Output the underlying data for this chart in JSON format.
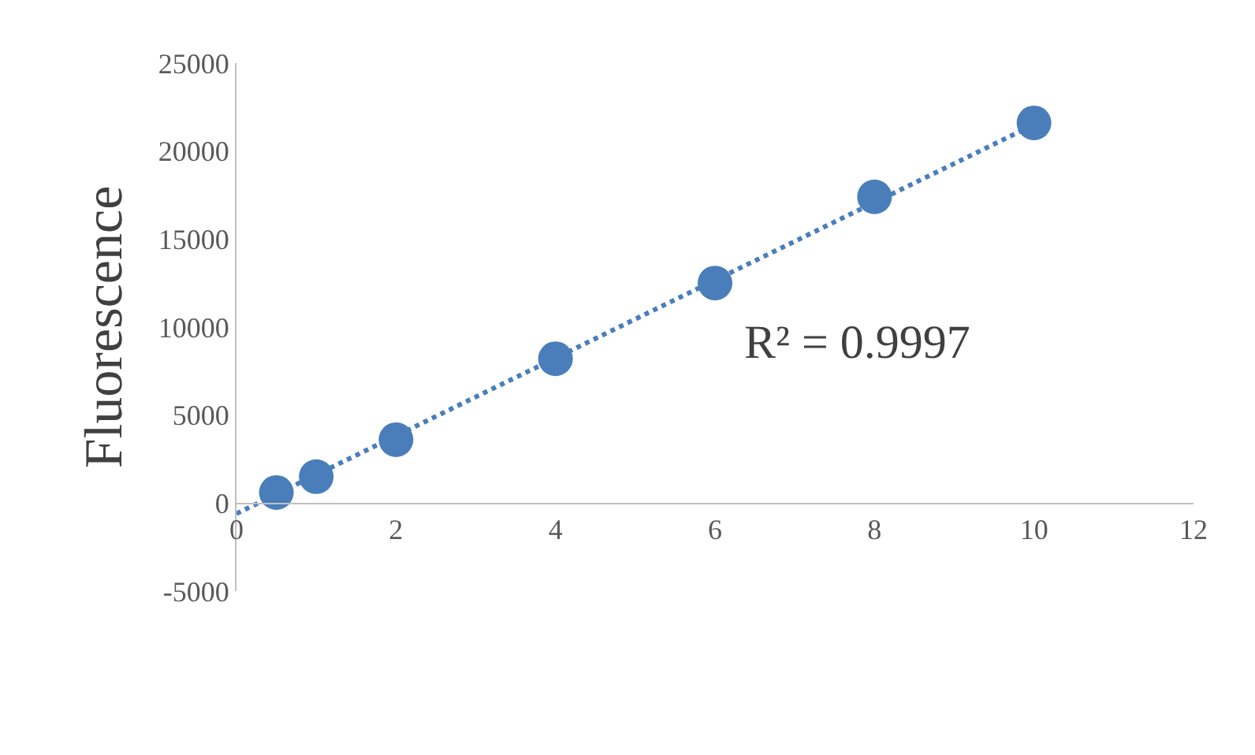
{
  "chart_data": {
    "type": "scatter",
    "ylabel": "Fluorescence",
    "marker": "circle",
    "grid": false,
    "xlim": [
      0,
      12
    ],
    "xticks": [
      0,
      2,
      4,
      6,
      8,
      10,
      12
    ],
    "ylim": [
      -5000,
      25000
    ],
    "yticks": [
      -5000,
      0,
      5000,
      10000,
      15000,
      20000,
      25000
    ],
    "series": [
      {
        "color": "#4a7ebb",
        "x": [
          0.5,
          1,
          2,
          4,
          6,
          8,
          10
        ],
        "values": [
          600,
          1500,
          3600,
          8200,
          12500,
          17400,
          21600
        ]
      },
      {
        "type": "line",
        "color": "#4a7ebb",
        "line_style": "dotted",
        "marker": "none",
        "x": [
          0,
          10
        ],
        "values": [
          -600,
          21500
        ]
      }
    ],
    "annotations": [
      "R² = 0.9997"
    ]
  }
}
